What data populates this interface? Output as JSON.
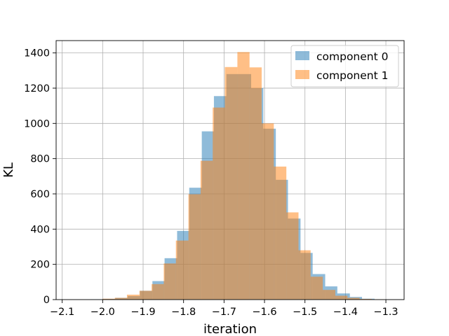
{
  "chart_data": {
    "type": "bar",
    "subtype": "overlapping-histogram",
    "title": "",
    "xlabel": "iteration",
    "ylabel": "KL",
    "xlim": [
      -2.115,
      -1.255
    ],
    "ylim": [
      0,
      1470
    ],
    "xticks": [
      -2.1,
      -2.0,
      -1.9,
      -1.8,
      -1.7,
      -1.6,
      -1.5,
      -1.4,
      -1.3
    ],
    "xtick_labels": [
      "−2.1",
      "−2.0",
      "−1.9",
      "−1.8",
      "−1.7",
      "−1.6",
      "−1.5",
      "−1.4",
      "−1.3"
    ],
    "yticks": [
      0,
      200,
      400,
      600,
      800,
      1000,
      1200,
      1400
    ],
    "ytick_labels": [
      "0",
      "200",
      "400",
      "600",
      "800",
      "1000",
      "1200",
      "1400"
    ],
    "grid": true,
    "legend": "top-right",
    "series": [
      {
        "name": "component 0",
        "color": "#1f77b4",
        "alpha": 0.5,
        "bins": [
          [
            -2.03,
            -1.999,
            2
          ],
          [
            -1.999,
            -1.969,
            4
          ],
          [
            -1.969,
            -1.938,
            10
          ],
          [
            -1.938,
            -1.908,
            20
          ],
          [
            -1.908,
            -1.877,
            50
          ],
          [
            -1.877,
            -1.847,
            105
          ],
          [
            -1.847,
            -1.816,
            235
          ],
          [
            -1.816,
            -1.786,
            390
          ],
          [
            -1.786,
            -1.755,
            635
          ],
          [
            -1.755,
            -1.725,
            955
          ],
          [
            -1.725,
            -1.694,
            1155
          ],
          [
            -1.694,
            -1.664,
            1280
          ],
          [
            -1.664,
            -1.633,
            1280
          ],
          [
            -1.633,
            -1.603,
            1200
          ],
          [
            -1.603,
            -1.572,
            970
          ],
          [
            -1.572,
            -1.542,
            680
          ],
          [
            -1.542,
            -1.511,
            460
          ],
          [
            -1.511,
            -1.481,
            265
          ],
          [
            -1.481,
            -1.45,
            145
          ],
          [
            -1.45,
            -1.42,
            75
          ],
          [
            -1.42,
            -1.389,
            35
          ],
          [
            -1.389,
            -1.359,
            15
          ],
          [
            -1.359,
            -1.328,
            5
          ]
        ]
      },
      {
        "name": "component 1",
        "color": "#ff7f0e",
        "alpha": 0.5,
        "bins": [
          [
            -2.0,
            -1.97,
            5
          ],
          [
            -1.97,
            -1.94,
            10
          ],
          [
            -1.94,
            -1.909,
            28
          ],
          [
            -1.909,
            -1.879,
            50
          ],
          [
            -1.879,
            -1.849,
            88
          ],
          [
            -1.849,
            -1.819,
            205
          ],
          [
            -1.819,
            -1.788,
            335
          ],
          [
            -1.788,
            -1.758,
            598
          ],
          [
            -1.758,
            -1.728,
            788
          ],
          [
            -1.728,
            -1.698,
            1090
          ],
          [
            -1.698,
            -1.667,
            1320
          ],
          [
            -1.667,
            -1.637,
            1405
          ],
          [
            -1.637,
            -1.607,
            1318
          ],
          [
            -1.607,
            -1.577,
            1000
          ],
          [
            -1.577,
            -1.546,
            755
          ],
          [
            -1.546,
            -1.516,
            495
          ],
          [
            -1.516,
            -1.486,
            280
          ],
          [
            -1.486,
            -1.456,
            130
          ],
          [
            -1.456,
            -1.425,
            55
          ],
          [
            -1.425,
            -1.395,
            22
          ],
          [
            -1.395,
            -1.365,
            10
          ],
          [
            -1.365,
            -1.335,
            4
          ],
          [
            -1.335,
            -1.304,
            2
          ]
        ]
      }
    ]
  }
}
